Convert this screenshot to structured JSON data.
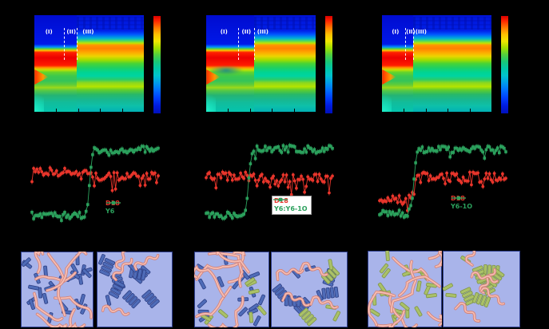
{
  "figure": {
    "background": "#000000"
  },
  "heatmap_style": {
    "pre_stops": [
      [
        0,
        "#000cd0"
      ],
      [
        0.3,
        "#0018e8"
      ],
      [
        0.33,
        "#0090ff"
      ],
      [
        0.35,
        "#60d830"
      ],
      [
        0.365,
        "#ffc000"
      ],
      [
        0.385,
        "#ff2000"
      ],
      [
        0.44,
        "#ec0000"
      ],
      [
        0.52,
        "#ff1c00"
      ],
      [
        0.545,
        "#ff9c00"
      ],
      [
        0.565,
        "#c8e000"
      ],
      [
        0.59,
        "#66d42a"
      ],
      [
        0.63,
        "#3cc84e"
      ],
      [
        0.68,
        "#34c45a"
      ],
      [
        0.72,
        "#60cc38"
      ],
      [
        0.75,
        "#9cd81a"
      ],
      [
        0.78,
        "#54c846"
      ],
      [
        0.83,
        "#24b474"
      ],
      [
        0.9,
        "#12bc9a"
      ],
      [
        1,
        "#04c4ae"
      ]
    ],
    "post_stops": [
      [
        0,
        "#0014d8"
      ],
      [
        0.16,
        "#0020e8"
      ],
      [
        0.2,
        "#0058ff"
      ],
      [
        0.24,
        "#00b0d8"
      ],
      [
        0.265,
        "#48d868"
      ],
      [
        0.29,
        "#c0e400"
      ],
      [
        0.31,
        "#ff9400"
      ],
      [
        0.345,
        "#ff8000"
      ],
      [
        0.385,
        "#ffa800"
      ],
      [
        0.425,
        "#ecd400"
      ],
      [
        0.465,
        "#9cdc00"
      ],
      [
        0.5,
        "#48d434"
      ],
      [
        0.545,
        "#1ed062"
      ],
      [
        0.59,
        "#00d492"
      ],
      [
        0.63,
        "#00d4a2"
      ],
      [
        0.665,
        "#28cc6a"
      ],
      [
        0.7,
        "#8cd81e"
      ],
      [
        0.74,
        "#b4e400"
      ],
      [
        0.775,
        "#5ccc30"
      ],
      [
        0.82,
        "#28b868"
      ],
      [
        0.88,
        "#16b892"
      ],
      [
        0.94,
        "#0ec0aa"
      ],
      [
        1,
        "#00b0b4"
      ]
    ],
    "colorbar_stops": [
      [
        0,
        "#d80000"
      ],
      [
        0.05,
        "#ff2400"
      ],
      [
        0.12,
        "#ff7800"
      ],
      [
        0.19,
        "#ffc000"
      ],
      [
        0.26,
        "#f0e800"
      ],
      [
        0.33,
        "#a0e000"
      ],
      [
        0.4,
        "#50d040"
      ],
      [
        0.47,
        "#18c878"
      ],
      [
        0.54,
        "#00c8a8"
      ],
      [
        0.61,
        "#00c4cc"
      ],
      [
        0.68,
        "#00a0e8"
      ],
      [
        0.76,
        "#0070ff"
      ],
      [
        0.84,
        "#0040ff"
      ],
      [
        0.92,
        "#001ce0"
      ],
      [
        1,
        "#0010bc"
      ]
    ]
  },
  "chart_data": [
    {
      "type": "heatmap",
      "panel": "top-left",
      "colormap": "jet-like",
      "dashed_lines_x": [
        0.27,
        0.385
      ],
      "regions": [
        {
          "label": "(I)",
          "x": 0.1
        },
        {
          "label": "(II)",
          "x": 0.295
        },
        {
          "label": "(III)",
          "x": 0.44
        }
      ],
      "features": "red band y 0.38-0.55 before 2nd dashed line; orange band y 0.31-0.42 after transition",
      "blob": false
    },
    {
      "type": "heatmap",
      "panel": "top-middle",
      "colormap": "jet-like",
      "dashed_lines_x": [
        0.295,
        0.435
      ],
      "regions": [
        {
          "label": "(I)",
          "x": 0.13
        },
        {
          "label": "(II)",
          "x": 0.325
        },
        {
          "label": "(III)",
          "x": 0.465
        }
      ],
      "features": "same banded structure; dark teal blob below red band in pre-region",
      "blob": true
    },
    {
      "type": "heatmap",
      "panel": "top-right",
      "colormap": "jet-like",
      "dashed_lines_x": [
        0.215,
        0.285
      ],
      "regions": [
        {
          "label": "(I)",
          "x": 0.09
        },
        {
          "label": "(II)",
          "x": 0.22
        },
        {
          "label": "(III)",
          "x": 0.305
        }
      ],
      "features": "earlier transition; red band ends at ~0.285 of width",
      "blob": false
    },
    {
      "type": "scatter",
      "panel": "middle-left",
      "x_range": [
        0,
        1
      ],
      "legend": {
        "boxed": false
      },
      "series": [
        {
          "name": "D18",
          "color": "#e8352b",
          "marker": "circle",
          "pre_level": 0.41,
          "post_level": 0.45,
          "jump_x": 0.45,
          "noise": 0.04,
          "spike_prob": 0.1,
          "spike_amp": 0.1,
          "seed": 3
        },
        {
          "name": "Y6",
          "color": "#2ba05c",
          "marker": "square",
          "pre_level": 0.83,
          "post_level": 0.195,
          "jump_x": 0.455,
          "noise": 0.032,
          "spike_prob": 0.04,
          "spike_amp": 0.05,
          "seed": 7
        }
      ]
    },
    {
      "type": "scatter",
      "panel": "middle-center",
      "x_range": [
        0,
        1
      ],
      "legend": {
        "boxed": true
      },
      "series": [
        {
          "name": "D18",
          "color": "#e8352b",
          "marker": "circle",
          "pre_level": 0.45,
          "post_level": 0.47,
          "jump_x": 0.33,
          "noise": 0.04,
          "spike_prob": 0.12,
          "spike_amp": 0.13,
          "seed": 5
        },
        {
          "name": "Y6:Y6-1O",
          "color": "#2ba05c",
          "marker": "square",
          "pre_level": 0.83,
          "post_level": 0.19,
          "jump_x": 0.335,
          "noise": 0.036,
          "spike_prob": 0.05,
          "spike_amp": 0.06,
          "seed": 9
        }
      ]
    },
    {
      "type": "scatter",
      "panel": "middle-right",
      "x_range": [
        0,
        1
      ],
      "legend": {
        "boxed": false
      },
      "series": [
        {
          "name": "D18",
          "color": "#e8352b",
          "marker": "circle",
          "pre_level": 0.68,
          "post_level": 0.46,
          "jump_x": 0.275,
          "noise": 0.05,
          "spike_prob": 0.1,
          "spike_amp": 0.1,
          "seed": 13
        },
        {
          "name": "Y6-1O",
          "color": "#2ba05c",
          "marker": "square",
          "pre_level": 0.81,
          "post_level": 0.195,
          "jump_x": 0.27,
          "noise": 0.034,
          "spike_prob": 0.05,
          "spike_amp": 0.05,
          "seed": 17
        }
      ]
    }
  ],
  "cartoons": {
    "style": {
      "bg": "#a9b4ea",
      "border": "#2f3f8f",
      "chain_fill": "#f6beb4",
      "chain_edge": "#d4857c",
      "rod_blue": "#4f6cb8",
      "rod_blue_edge": "#2d3f85",
      "rod_green": "#aac168",
      "rod_green_edge": "#7f9447"
    },
    "pairs": [
      {
        "name": "d18-y6",
        "chains": 8,
        "rods": [
          {
            "color": "blue",
            "count": 26
          }
        ],
        "seeds": [
          21,
          22
        ]
      },
      {
        "name": "d18-y6-y61o",
        "chains": 7,
        "rods": [
          {
            "color": "blue",
            "count": 18
          },
          {
            "color": "green",
            "count": 8
          }
        ],
        "seeds": [
          31,
          32
        ]
      },
      {
        "name": "d18-y61o",
        "chains": 9,
        "rods": [
          {
            "color": "green",
            "count": 22
          }
        ],
        "seeds": [
          41,
          42
        ]
      }
    ],
    "panel_states": [
      "disordered",
      "ordered"
    ]
  }
}
